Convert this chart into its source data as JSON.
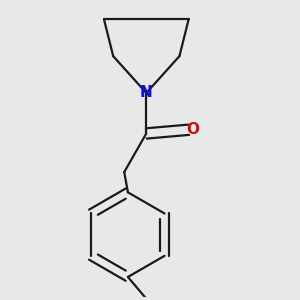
{
  "bg_color": "#e8e8e8",
  "bond_color": "#1a1a1a",
  "N_color": "#1010dd",
  "O_color": "#cc1010",
  "line_width": 1.6,
  "font_size_atom": 11,
  "figure_size": [
    3.0,
    3.0
  ]
}
